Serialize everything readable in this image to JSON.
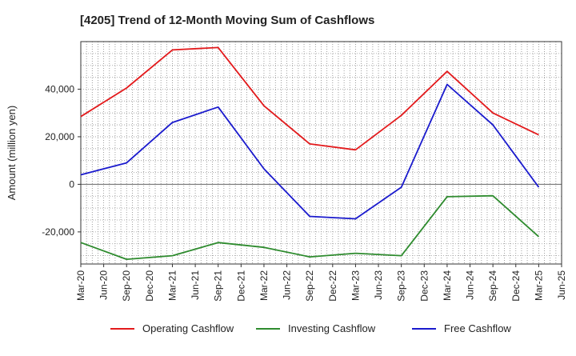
{
  "chart_data": {
    "type": "line",
    "title": "[4205]  Trend of 12-Month Moving Sum of Cashflows",
    "xlabel": "",
    "ylabel": "Amount (million yen)",
    "ylim": [
      -33500,
      60000
    ],
    "yticks": [
      -20000,
      0,
      20000,
      40000
    ],
    "ytick_labels": [
      "-20,000",
      "0",
      "20,000",
      "40,000"
    ],
    "x_ticks": [
      "Mar-20",
      "Jun-20",
      "Sep-20",
      "Dec-20",
      "Mar-21",
      "Jun-21",
      "Sep-21",
      "Dec-21",
      "Mar-22",
      "Jun-22",
      "Sep-22",
      "Dec-22",
      "Mar-23",
      "Jun-23",
      "Sep-23",
      "Dec-23",
      "Mar-24",
      "Jun-24",
      "Sep-24",
      "Dec-24",
      "Mar-25",
      "Jun-25"
    ],
    "x": [
      "Mar-20",
      "Sep-20",
      "Mar-21",
      "Sep-21",
      "Mar-22",
      "Sep-22",
      "Mar-23",
      "Sep-23",
      "Mar-24",
      "Sep-24",
      "Mar-25"
    ],
    "grid": true,
    "legend_position": "bottom",
    "series": [
      {
        "name": "Operating Cashflow",
        "color": "#e31a1c",
        "values": [
          28500,
          40500,
          56500,
          57500,
          33000,
          17000,
          14500,
          29000,
          47500,
          30000,
          20800
        ]
      },
      {
        "name": "Investing Cashflow",
        "color": "#2e8b2e",
        "values": [
          -24500,
          -31500,
          -30000,
          -24500,
          -26500,
          -30500,
          -29000,
          -30000,
          -5200,
          -4800,
          -22000
        ]
      },
      {
        "name": "Free Cashflow",
        "color": "#1a1acd",
        "values": [
          4000,
          9000,
          26000,
          32500,
          6500,
          -13500,
          -14500,
          -1200,
          42000,
          25000,
          -1200
        ]
      }
    ]
  }
}
